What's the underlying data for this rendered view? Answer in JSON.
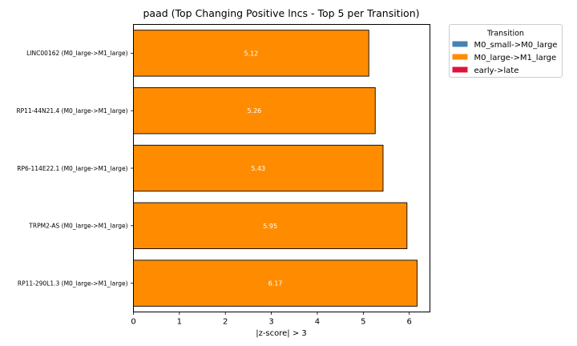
{
  "chart_data": {
    "type": "bar",
    "orientation": "horizontal",
    "title": "paad (Top Changing Positive lncs - Top 5 per Transition)",
    "xlabel": "|z-score| > 3",
    "ylabel": "",
    "xlim": [
      0,
      6.45
    ],
    "xticks": [
      0,
      1,
      2,
      3,
      4,
      5,
      6
    ],
    "grid": false,
    "bar_edge_color": "#000000",
    "categories": [
      "LINC00162 (M0_large->M1_large)",
      "RP11-44N21.4 (M0_large->M1_large)",
      "RP6-114E22.1 (M0_large->M1_large)",
      "TRPM2-AS (M0_large->M1_large)",
      "RP11-290L1.3 (M0_large->M1_large)"
    ],
    "values": [
      5.12,
      5.26,
      5.43,
      5.95,
      6.17
    ],
    "value_labels": [
      "5.12",
      "5.26",
      "5.43",
      "5.95",
      "6.17"
    ],
    "bar_transition": [
      "M0_large->M1_large",
      "M0_large->M1_large",
      "M0_large->M1_large",
      "M0_large->M1_large",
      "M0_large->M1_large"
    ],
    "legend": {
      "title": "Transition",
      "placement": "outside-top-right",
      "entries": [
        {
          "name": "M0_small->M0_large",
          "color": "#4682b4"
        },
        {
          "name": "M0_large->M1_large",
          "color": "#ff8c00"
        },
        {
          "name": "early->late",
          "color": "#dc143c"
        }
      ]
    }
  }
}
